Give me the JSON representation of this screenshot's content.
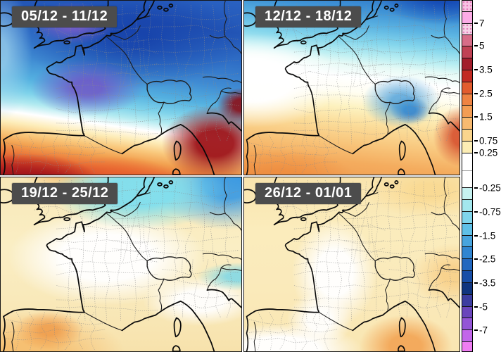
{
  "panels": [
    {
      "label": "05/12 - 11/12"
    },
    {
      "label": "12/12 - 18/12"
    },
    {
      "label": "19/12 - 25/12"
    },
    {
      "label": "26/12 - 01/01"
    }
  ],
  "panel_label_style": {
    "background": "#4c4c4c",
    "text_color": "#ffffff"
  },
  "colorbar": {
    "tick_labels": [
      "7",
      "5",
      "3.5",
      "2.5",
      "1.5",
      "0.75",
      "0.25",
      "-0.25",
      "-0.75",
      "-1.5",
      "-2.5",
      "-3.5",
      "-5",
      "-7"
    ],
    "segments": [
      {
        "h": 15,
        "color": "#f7c3e4",
        "pattern": "dots"
      },
      {
        "h": 16,
        "color": "#fbabe6",
        "label": "7"
      },
      {
        "h": 15,
        "color": "#f5d3e7",
        "pattern": "dots"
      },
      {
        "h": 16,
        "color": "#d76d88",
        "label": "5"
      },
      {
        "h": 16,
        "color": "#c04254"
      },
      {
        "h": 16,
        "color": "#a21d2b",
        "label": "3.5"
      },
      {
        "h": 16,
        "color": "#c22a23"
      },
      {
        "h": 16,
        "color": "#e25c2e",
        "label": "2.5"
      },
      {
        "h": 16,
        "color": "#ee8343"
      },
      {
        "h": 16,
        "color": "#f39d54",
        "label": "1.5"
      },
      {
        "h": 16,
        "color": "#f8ba70"
      },
      {
        "h": 16,
        "color": "#fad58d",
        "label": "0.75"
      },
      {
        "h": 16,
        "color": "#fcedb4",
        "label": "0.25"
      },
      {
        "h": 24,
        "color": "#ffffff",
        "divider": true
      },
      {
        "h": 24,
        "color": "#ffffff",
        "label": "-0.25"
      },
      {
        "h": 16,
        "color": "#c6f1f0"
      },
      {
        "h": 16,
        "color": "#a3e7ee",
        "label": "-0.75"
      },
      {
        "h": 16,
        "color": "#7fd5ec"
      },
      {
        "h": 16,
        "color": "#5fc0e8",
        "label": "-1.5"
      },
      {
        "h": 16,
        "color": "#47a4de"
      },
      {
        "h": 16,
        "color": "#3085d1",
        "label": "-2.5"
      },
      {
        "h": 16,
        "color": "#2267bf"
      },
      {
        "h": 16,
        "color": "#184ea7",
        "label": "-3.5"
      },
      {
        "h": 16,
        "color": "#10357f"
      },
      {
        "h": 16,
        "color": "#3c3da0",
        "label": "-5"
      },
      {
        "h": 16,
        "color": "#6a46bc"
      },
      {
        "h": 16,
        "color": "#9355d6",
        "label": "-7"
      },
      {
        "h": 16,
        "color": "#c266ea"
      },
      {
        "h": 13,
        "color": "#ee7df2"
      }
    ]
  }
}
